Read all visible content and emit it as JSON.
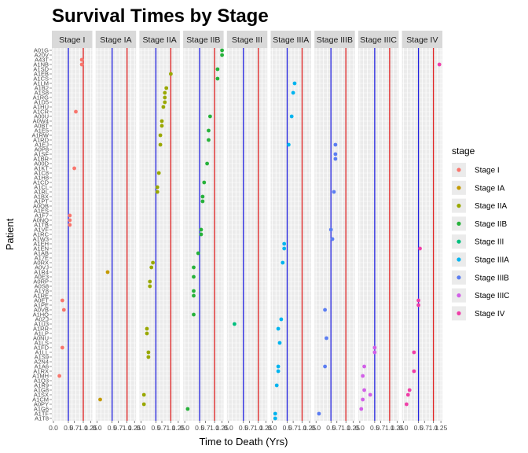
{
  "chart_data": {
    "type": "scatter",
    "title": "Survival Times by Stage",
    "xlabel": "Time to Death (Yrs)",
    "ylabel": "Patient",
    "x_ticks": [
      "0.0",
      "0.5",
      "0.7",
      "1.0",
      "1.25"
    ],
    "xlim": [
      0,
      1.25
    ],
    "reference_lines": [
      {
        "value": 0.5,
        "color": "#2020e0"
      },
      {
        "value": 1.0,
        "color": "#e02020"
      }
    ],
    "legend": {
      "title": "stage",
      "placement": "right",
      "entries": [
        {
          "name": "Stage I",
          "color": "#F8766D"
        },
        {
          "name": "Stage IA",
          "color": "#C49A00"
        },
        {
          "name": "Stage IIA",
          "color": "#99A800"
        },
        {
          "name": "Stage IIB",
          "color": "#27B23B"
        },
        {
          "name": "Stage III",
          "color": "#00BF7D"
        },
        {
          "name": "Stage IIIA",
          "color": "#00B4EF"
        },
        {
          "name": "Stage IIIB",
          "color": "#5C7EF2"
        },
        {
          "name": "Stage IIIC",
          "color": "#D260E8"
        },
        {
          "name": "Stage IV",
          "color": "#F03FA8"
        }
      ]
    },
    "patient_labels": [
      "A01G",
      "A20V",
      "A43T",
      "A1NB",
      "A1SD",
      "A1EB",
      "A1CS",
      "A1LM",
      "A1B2",
      "A1S8",
      "A1RG",
      "A1D5",
      "A1HU",
      "A1CR",
      "A00U",
      "A0W4",
      "A0BT",
      "A1E5",
      "A1RW",
      "A1RD",
      "A1EJ",
      "A0P8",
      "A1SF",
      "A1BR",
      "A00D",
      "A1KT",
      "A1C8",
      "A1H8",
      "A1CD",
      "A1CL",
      "A1RL",
      "A1BX",
      "A1PT",
      "A0OB",
      "A1ES",
      "A1F7",
      "A0NQ",
      "A1TB",
      "A1VF",
      "A1RC",
      "A1W3",
      "A1EH",
      "A1EN",
      "A1AB",
      "A17E",
      "A0RX",
      "A0VJ",
      "A1R4",
      "A0E3",
      "A0RP",
      "A0S8",
      "A1Y8",
      "A1RE",
      "A0ET",
      "A1PE",
      "A0VB",
      "A1HQ",
      "A0ZJ",
      "A1U3",
      "A1RR",
      "A1LP",
      "A0NU",
      "A1LS",
      "A1FD",
      "A1LL",
      "A1S9",
      "A2N4",
      "A1A6",
      "A1RX",
      "A1MH",
      "A1Q3",
      "A1R9",
      "A1G8",
      "A1SX",
      "A1CM",
      "A0PY",
      "A1G6",
      "A1TF",
      "A1T8"
    ],
    "points": [
      {
        "stage": "Stage I",
        "patient": "A43T",
        "time": 0.95
      },
      {
        "stage": "Stage I",
        "patient": "A1NB",
        "time": 0.95
      },
      {
        "stage": "Stage I",
        "patient": "A1CR",
        "time": 0.75
      },
      {
        "stage": "Stage I",
        "patient": "A1KT",
        "time": 0.7
      },
      {
        "stage": "Stage I",
        "patient": "A1F7",
        "time": 0.55
      },
      {
        "stage": "Stage I",
        "patient": "A0NQ",
        "time": 0.55
      },
      {
        "stage": "Stage I",
        "patient": "A1TB",
        "time": 0.55
      },
      {
        "stage": "Stage I",
        "patient": "A0VB",
        "time": 0.35
      },
      {
        "stage": "Stage I",
        "patient": "A1FD",
        "time": 0.3
      },
      {
        "stage": "Stage I",
        "patient": "A0ET",
        "time": 0.3
      },
      {
        "stage": "Stage I",
        "patient": "A1MH",
        "time": 0.2
      },
      {
        "stage": "Stage IA",
        "patient": "A1R4",
        "time": 0.35
      },
      {
        "stage": "Stage IA",
        "patient": "A1CM",
        "time": 0.1
      },
      {
        "stage": "Stage IIA",
        "patient": "A1EB",
        "time": 1.0
      },
      {
        "stage": "Stage IIA",
        "patient": "A1B2",
        "time": 0.85
      },
      {
        "stage": "Stage IIA",
        "patient": "A1S8",
        "time": 0.8
      },
      {
        "stage": "Stage IIA",
        "patient": "A1RG",
        "time": 0.8
      },
      {
        "stage": "Stage IIA",
        "patient": "A1D5",
        "time": 0.8
      },
      {
        "stage": "Stage IIA",
        "patient": "A1HU",
        "time": 0.75
      },
      {
        "stage": "Stage IIA",
        "patient": "A0W4",
        "time": 0.7
      },
      {
        "stage": "Stage IIA",
        "patient": "A0BT",
        "time": 0.7
      },
      {
        "stage": "Stage IIA",
        "patient": "A1EJ",
        "time": 0.65
      },
      {
        "stage": "Stage IIA",
        "patient": "A1RW",
        "time": 0.65
      },
      {
        "stage": "Stage IIA",
        "patient": "A1C8",
        "time": 0.6
      },
      {
        "stage": "Stage IIA",
        "patient": "A1CL",
        "time": 0.55
      },
      {
        "stage": "Stage IIA",
        "patient": "A1RL",
        "time": 0.55
      },
      {
        "stage": "Stage IIA",
        "patient": "A0RX",
        "time": 0.4
      },
      {
        "stage": "Stage IIA",
        "patient": "A0VJ",
        "time": 0.35
      },
      {
        "stage": "Stage IIA",
        "patient": "A0RP",
        "time": 0.3
      },
      {
        "stage": "Stage IIA",
        "patient": "A0S8",
        "time": 0.3
      },
      {
        "stage": "Stage IIA",
        "patient": "A1LL",
        "time": 0.25
      },
      {
        "stage": "Stage IIA",
        "patient": "A1S9",
        "time": 0.25
      },
      {
        "stage": "Stage IIA",
        "patient": "A1RR",
        "time": 0.2
      },
      {
        "stage": "Stage IIA",
        "patient": "A1LP",
        "time": 0.2
      },
      {
        "stage": "Stage IIA",
        "patient": "A1SX",
        "time": 0.1
      },
      {
        "stage": "Stage IIA",
        "patient": "A0PY",
        "time": 0.1
      },
      {
        "stage": "Stage IIB",
        "patient": "A01G",
        "time": 1.25
      },
      {
        "stage": "Stage IIB",
        "patient": "A20V",
        "time": 1.25
      },
      {
        "stage": "Stage IIB",
        "patient": "A1SD",
        "time": 1.1
      },
      {
        "stage": "Stage IIB",
        "patient": "A1CS",
        "time": 1.1
      },
      {
        "stage": "Stage IIB",
        "patient": "A00U",
        "time": 0.85
      },
      {
        "stage": "Stage IIB",
        "patient": "A1E5",
        "time": 0.8
      },
      {
        "stage": "Stage IIB",
        "patient": "A1RD",
        "time": 0.8
      },
      {
        "stage": "Stage IIB",
        "patient": "A00D",
        "time": 0.75
      },
      {
        "stage": "Stage IIB",
        "patient": "A1CD",
        "time": 0.65
      },
      {
        "stage": "Stage IIB",
        "patient": "A1BX",
        "time": 0.6
      },
      {
        "stage": "Stage IIB",
        "patient": "A1PT",
        "time": 0.6
      },
      {
        "stage": "Stage IIB",
        "patient": "A1VF",
        "time": 0.55
      },
      {
        "stage": "Stage IIB",
        "patient": "A1RC",
        "time": 0.55
      },
      {
        "stage": "Stage IIB",
        "patient": "A1AB",
        "time": 0.45
      },
      {
        "stage": "Stage IIB",
        "patient": "A0VJ",
        "time": 0.3
      },
      {
        "stage": "Stage IIB",
        "patient": "A0E3",
        "time": 0.3
      },
      {
        "stage": "Stage IIB",
        "patient": "A1Y8",
        "time": 0.3
      },
      {
        "stage": "Stage IIB",
        "patient": "A1RE",
        "time": 0.3
      },
      {
        "stage": "Stage IIB",
        "patient": "A1HQ",
        "time": 0.3
      },
      {
        "stage": "Stage IIB",
        "patient": "A1G6",
        "time": 0.1
      },
      {
        "stage": "Stage III",
        "patient": "A1U3",
        "time": 0.2
      },
      {
        "stage": "Stage IIIA",
        "patient": "A1LM",
        "time": 0.75
      },
      {
        "stage": "Stage IIIA",
        "patient": "A1S8",
        "time": 0.7
      },
      {
        "stage": "Stage IIIA",
        "patient": "A00U",
        "time": 0.65
      },
      {
        "stage": "Stage IIIA",
        "patient": "A1EJ",
        "time": 0.55
      },
      {
        "stage": "Stage IIIA",
        "patient": "A1EH",
        "time": 0.4
      },
      {
        "stage": "Stage IIIA",
        "patient": "A1EN",
        "time": 0.4
      },
      {
        "stage": "Stage IIIA",
        "patient": "A0RX",
        "time": 0.35
      },
      {
        "stage": "Stage IIIA",
        "patient": "A0ZJ",
        "time": 0.3
      },
      {
        "stage": "Stage IIIA",
        "patient": "A1LS",
        "time": 0.25
      },
      {
        "stage": "Stage IIIA",
        "patient": "A1RR",
        "time": 0.2
      },
      {
        "stage": "Stage IIIA",
        "patient": "A1A6",
        "time": 0.2
      },
      {
        "stage": "Stage IIIA",
        "patient": "A1RX",
        "time": 0.2
      },
      {
        "stage": "Stage IIIA",
        "patient": "A1R9",
        "time": 0.15
      },
      {
        "stage": "Stage IIIA",
        "patient": "A1TF",
        "time": 0.1
      },
      {
        "stage": "Stage IIIA",
        "patient": "A1T8",
        "time": 0.1
      },
      {
        "stage": "Stage IIIB",
        "patient": "A1EJ",
        "time": 0.65
      },
      {
        "stage": "Stage IIIB",
        "patient": "A1SF",
        "time": 0.65
      },
      {
        "stage": "Stage IIIB",
        "patient": "A1BR",
        "time": 0.65
      },
      {
        "stage": "Stage IIIB",
        "patient": "A1RL",
        "time": 0.6
      },
      {
        "stage": "Stage IIIB",
        "patient": "A1VF",
        "time": 0.5
      },
      {
        "stage": "Stage IIIB",
        "patient": "A1W3",
        "time": 0.55
      },
      {
        "stage": "Stage IIIB",
        "patient": "A0NU",
        "time": 0.35
      },
      {
        "stage": "Stage IIIB",
        "patient": "A0VB",
        "time": 0.3
      },
      {
        "stage": "Stage IIIB",
        "patient": "A1A6",
        "time": 0.3
      },
      {
        "stage": "Stage IIIB",
        "patient": "A1TF",
        "time": 0.1
      },
      {
        "stage": "Stage IIIC",
        "patient": "A1LL",
        "time": 0.5
      },
      {
        "stage": "Stage IIIC",
        "patient": "A1FD",
        "time": 0.5
      },
      {
        "stage": "Stage IIIC",
        "patient": "A1SX",
        "time": 0.35
      },
      {
        "stage": "Stage IIIC",
        "patient": "A1G8",
        "time": 0.15
      },
      {
        "stage": "Stage IIIC",
        "patient": "A1A6",
        "time": 0.15
      },
      {
        "stage": "Stage IIIC",
        "patient": "A1MH",
        "time": 0.1
      },
      {
        "stage": "Stage IIIC",
        "patient": "A1CM",
        "time": 0.1
      },
      {
        "stage": "Stage IIIC",
        "patient": "A1G6",
        "time": 0.05
      },
      {
        "stage": "Stage IV",
        "patient": "A1NB",
        "time": 1.2
      },
      {
        "stage": "Stage IV",
        "patient": "A1EN",
        "time": 0.55
      },
      {
        "stage": "Stage IV",
        "patient": "A0ET",
        "time": 0.5
      },
      {
        "stage": "Stage IV",
        "patient": "A1PE",
        "time": 0.5
      },
      {
        "stage": "Stage IV",
        "patient": "A1RX",
        "time": 0.35
      },
      {
        "stage": "Stage IV",
        "patient": "A1LL",
        "time": 0.35
      },
      {
        "stage": "Stage IV",
        "patient": "A1G8",
        "time": 0.2
      },
      {
        "stage": "Stage IV",
        "patient": "A1SX",
        "time": 0.15
      },
      {
        "stage": "Stage IV",
        "patient": "A0PY",
        "time": 0.1
      }
    ]
  }
}
